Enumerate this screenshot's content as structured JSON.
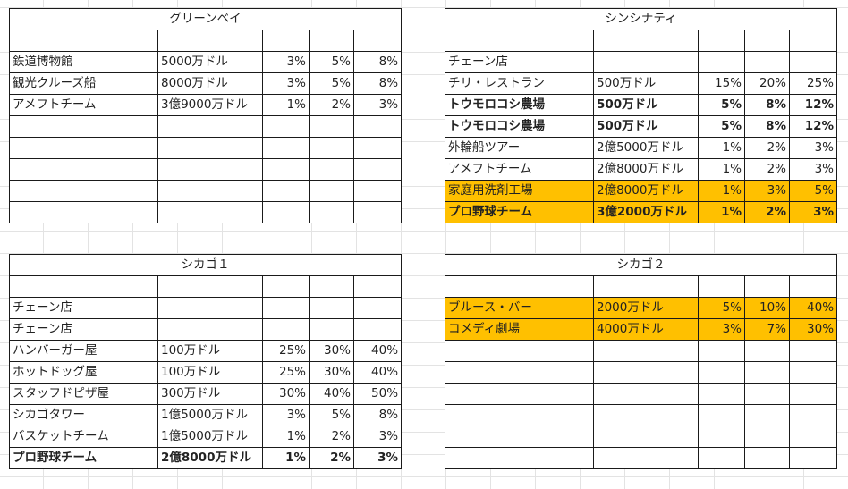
{
  "tables": [
    {
      "id": "gb",
      "name": "green-bay-table",
      "title": "グリーンベイ",
      "rows": [
        {
          "cells": [
            "",
            "",
            "",
            "",
            ""
          ]
        },
        {
          "cells": [
            "鉄道博物館",
            "5000万ドル",
            "3%",
            "5%",
            "8%"
          ]
        },
        {
          "cells": [
            "観光クルーズ船",
            "8000万ドル",
            "3%",
            "5%",
            "8%"
          ]
        },
        {
          "cells": [
            "アメフトチーム",
            "3億9000万ドル",
            "1%",
            "2%",
            "3%"
          ]
        },
        {
          "cells": [
            "",
            "",
            "",
            "",
            ""
          ]
        },
        {
          "cells": [
            "",
            "",
            "",
            "",
            ""
          ]
        },
        {
          "cells": [
            "",
            "",
            "",
            "",
            ""
          ]
        },
        {
          "cells": [
            "",
            "",
            "",
            "",
            ""
          ]
        },
        {
          "cells": [
            "",
            "",
            "",
            "",
            ""
          ]
        }
      ]
    },
    {
      "id": "cin",
      "name": "cincinnati-table",
      "title": "シンシナティ",
      "rows": [
        {
          "cells": [
            "",
            "",
            "",
            "",
            ""
          ]
        },
        {
          "cells": [
            "チェーン店",
            "",
            "",
            "",
            ""
          ]
        },
        {
          "cells": [
            "チリ・レストラン",
            "500万ドル",
            "15%",
            "20%",
            "25%"
          ]
        },
        {
          "cells": [
            "トウモロコシ農場",
            "500万ドル",
            "5%",
            "8%",
            "12%"
          ],
          "bold": true
        },
        {
          "cells": [
            "トウモロコシ農場",
            "500万ドル",
            "5%",
            "8%",
            "12%"
          ],
          "bold": true
        },
        {
          "cells": [
            "外輪船ツアー",
            "2億5000万ドル",
            "1%",
            "2%",
            "3%"
          ]
        },
        {
          "cells": [
            "アメフトチーム",
            "2億8000万ドル",
            "1%",
            "2%",
            "3%"
          ]
        },
        {
          "cells": [
            "家庭用洗剤工場",
            "2億8000万ドル",
            "1%",
            "3%",
            "5%"
          ],
          "highlight": true
        },
        {
          "cells": [
            "プロ野球チーム",
            "3億2000万ドル",
            "1%",
            "2%",
            "3%"
          ],
          "bold": true,
          "highlight": true
        }
      ]
    },
    {
      "id": "chi1",
      "name": "chicago-1-table",
      "title": "シカゴ１",
      "rows": [
        {
          "cells": [
            "",
            "",
            "",
            "",
            ""
          ]
        },
        {
          "cells": [
            "チェーン店",
            "",
            "",
            "",
            ""
          ]
        },
        {
          "cells": [
            "チェーン店",
            "",
            "",
            "",
            ""
          ]
        },
        {
          "cells": [
            "ハンバーガー屋",
            "100万ドル",
            "25%",
            "30%",
            "40%"
          ]
        },
        {
          "cells": [
            "ホットドッグ屋",
            "100万ドル",
            "25%",
            "30%",
            "40%"
          ]
        },
        {
          "cells": [
            "スタッフドピザ屋",
            "300万ドル",
            "30%",
            "40%",
            "50%"
          ]
        },
        {
          "cells": [
            "シカゴタワー",
            "1億5000万ドル",
            "3%",
            "5%",
            "8%"
          ]
        },
        {
          "cells": [
            "バスケットチーム",
            "1億5000万ドル",
            "1%",
            "2%",
            "3%"
          ]
        },
        {
          "cells": [
            "プロ野球チーム",
            "2億8000万ドル",
            "1%",
            "2%",
            "3%"
          ],
          "bold": true
        }
      ]
    },
    {
      "id": "chi2",
      "name": "chicago-2-table",
      "title": "シカゴ２",
      "rows": [
        {
          "cells": [
            "",
            "",
            "",
            "",
            ""
          ]
        },
        {
          "cells": [
            "ブルース・バー",
            "2000万ドル",
            "5%",
            "10%",
            "40%"
          ],
          "highlight": true
        },
        {
          "cells": [
            "コメディ劇場",
            "4000万ドル",
            "3%",
            "7%",
            "30%"
          ],
          "highlight": true
        },
        {
          "cells": [
            "",
            "",
            "",
            "",
            ""
          ]
        },
        {
          "cells": [
            "",
            "",
            "",
            "",
            ""
          ]
        },
        {
          "cells": [
            "",
            "",
            "",
            "",
            ""
          ]
        },
        {
          "cells": [
            "",
            "",
            "",
            "",
            ""
          ]
        },
        {
          "cells": [
            "",
            "",
            "",
            "",
            ""
          ]
        },
        {
          "cells": [
            "",
            "",
            "",
            "",
            ""
          ]
        }
      ]
    }
  ],
  "colors": {
    "highlight": "#ffc000",
    "border": "#1a1a1a",
    "gridline": "#e3e3e3"
  }
}
